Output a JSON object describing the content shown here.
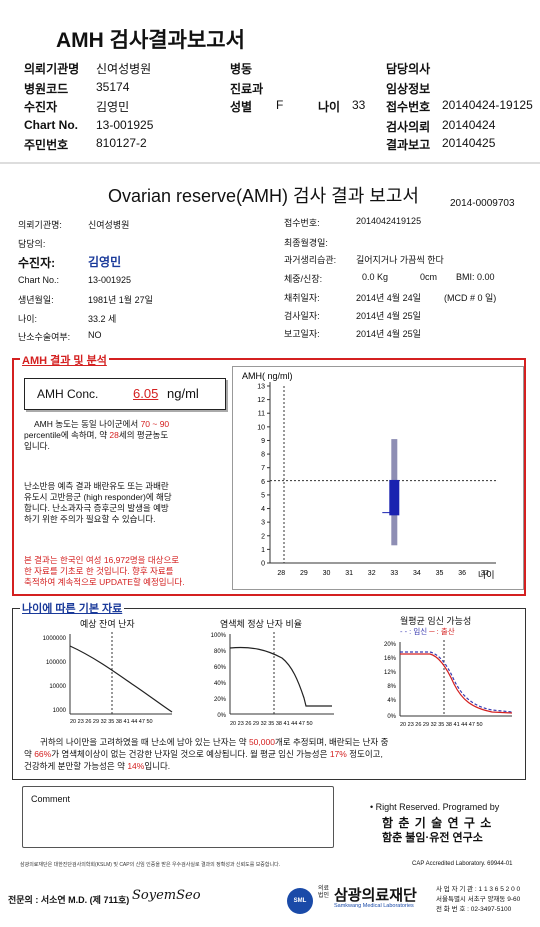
{
  "header": {
    "title": "AMH 검사결과보고서",
    "labels": {
      "institution": "의뢰기관명",
      "hospital_code": "병원코드",
      "patient": "수진자",
      "chart_no": "Chart No.",
      "resident_no": "주민번호",
      "ward": "병동",
      "department": "진료과",
      "sex": "성별",
      "age": "나이",
      "doctor": "담당의사",
      "clinical_info": "임상정보",
      "receipt_no": "접수번호",
      "request_date": "검사의뢰",
      "report_date": "결과보고"
    },
    "values": {
      "institution": "신여성병원",
      "hospital_code": "35174",
      "patient": "김영민",
      "chart_no": "13-001925",
      "resident_no": "810127-2",
      "sex": "F",
      "age": "33",
      "receipt_no": "20140424-19125",
      "request_date": "20140424",
      "report_date": "20140425"
    }
  },
  "report": {
    "title": "Ovarian reserve(AMH) 검사 결과 보고서",
    "doc_no": "2014-0009703",
    "left_labels": {
      "institution": "의뢰기관명:",
      "doctor": "담당의:",
      "patient": "수진자:",
      "chart_no": "Chart No.:",
      "birth": "생년월일:",
      "age": "나이:",
      "ovary_surgery": "난소수술여부:"
    },
    "left_values": {
      "institution": "신여성병원",
      "patient": "김영민",
      "chart_no": "13-001925",
      "birth": "1981년 1월 27일",
      "age": "33.2 세",
      "ovary_surgery": "NO"
    },
    "right_labels": {
      "receipt_no": "접수번호:",
      "last_menses": "최종월경일:",
      "history": "과거생리습관:",
      "body": "체중/신장:",
      "sample_date": "채취일자:",
      "test_date": "검사일자:",
      "report_date": "보고일자:"
    },
    "right_values": {
      "receipt_no": "2014042419125",
      "history": "길어지거나 가끔씩 한다",
      "weight": "0.0 Kg",
      "height": "0cm",
      "bmi": "BMI:  0.00",
      "sample_date": "2014년 4월 24일",
      "mcd": "(MCD # 0 일)",
      "test_date": "2014년 4월 25일",
      "report_date": "2014년 4월 25일"
    }
  },
  "amh_section": {
    "header": "AMH 결과 및 분석",
    "conc_label": "AMH Conc.",
    "conc_value": "6.05",
    "conc_unit": "ng/ml",
    "para1": {
      "a": "AMH 농도는 동일 나이군에서",
      "pct": "70 ~ 90",
      "b": "percentile에 속하며, 약",
      "age": "28",
      "c": "세의 평균농도",
      "d": "입니다."
    },
    "para2": [
      "난소반응 예측 결과 배란유도 또는 과배란",
      "유도시 고반응군 (high responder)에 해당",
      "합니다. 난소과자극 증후군의 발생을 예방",
      "하기 위한 주의가 필요할 수 있습니다."
    ],
    "para3": [
      "본 결과는 한국인 여성 16,972명을 대상으로",
      "한 자료를 기초로 한 것입니다. 향후 자료를",
      "축적하여 계속적으로 UPDATE할 예정입니다."
    ]
  },
  "chart_data": {
    "type": "box",
    "title": "AMH( ng/ml)",
    "xlabel": "나이",
    "x_ticks": [
      28,
      29,
      30,
      31,
      32,
      33,
      34,
      35,
      36,
      37
    ],
    "y_ticks": [
      0,
      1,
      2,
      3,
      4,
      5,
      6,
      7,
      8,
      9,
      10,
      11,
      12,
      13
    ],
    "ylim": [
      0,
      13
    ],
    "whisker": {
      "x": 33,
      "min": 1.3,
      "max": 9.1
    },
    "box": {
      "x": 33,
      "q1": 3.5,
      "q3": 6.1
    },
    "patient": {
      "age": 33.2,
      "value": 6.05
    },
    "median": 3.7
  },
  "base_section": {
    "header": "나이에 따른 기본 자료",
    "chart1": {
      "title": "예상 잔여 난자",
      "y_ticks": [
        "1000000",
        "100000",
        "10000",
        "1000"
      ],
      "x_ticks": "20 23 26 29 32 35 38 41 44 47 50"
    },
    "chart2": {
      "title": "염색체 정상 난자 비율",
      "y_ticks": [
        "100%",
        "80%",
        "60%",
        "40%",
        "20%",
        "0%"
      ],
      "x_ticks": "20 23 26 29 32 35 38 41 44 47 50"
    },
    "chart3": {
      "title": "월평균 임신 가능성",
      "legend_pregnancy": "임신",
      "legend_birth": "출산",
      "y_ticks": [
        "20%",
        "16%",
        "12%",
        "8%",
        "4%",
        "0%"
      ],
      "x_ticks": "20 23 26 29 32 35 38 41 44 47 50"
    },
    "summary": {
      "a": "귀하의 나이만을 고려하였을 때 난소에 남아 있는 난자는 약",
      "eggs": "50,000",
      "b": "개로 추정되며, 배란되는 난자 중",
      "c": "약",
      "pct_normal": "66%",
      "d": "가 염색체이상이 없는 건강한 난자일 것으로 예상됩니다. 월 평균 임신 가능성은",
      "preg": "17%",
      "e": "정도이고,",
      "f": "건강하게 분만할 가능성은 약",
      "birth": "14%",
      "g": "입니다."
    }
  },
  "footer": {
    "comment_label": "Comment",
    "rights": "• Right Reserved. Programed by",
    "inst1": "함 춘 기 술 연 구 소",
    "inst2": "함춘 불임·유전 연구소",
    "notice": "삼광의료재단은 대한진단검사의학회(KSLM) 및 CAP의 신임 인증을 받은 우수검사실로 결과의 정확성과 신뢰도를 보증합니다.",
    "cap": "CAP Accredited Laboratory. 69944-01",
    "specialist": "전문의 : 서소연 M.D. (제 711호)",
    "signature": "SoyemSeo",
    "org_sub": "의료법인",
    "org_name": "삼광의료재단",
    "org_eng": "Samkwang Medical Laboratories",
    "reg_no": "사 업 자 기 관 : 1 1 3 6 5 2 0 0",
    "address": "서울특별시 서초구 양재동 9-60",
    "tel": "전 화 번 호 : 02-3497-5100",
    "logo_text": "SML"
  }
}
